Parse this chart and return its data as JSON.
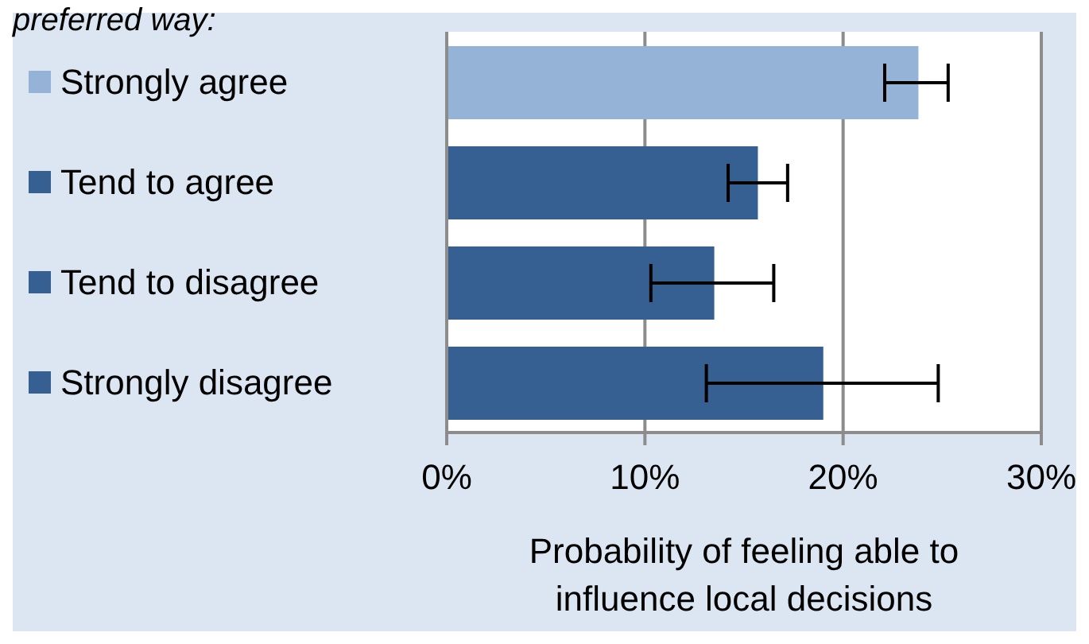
{
  "chart_data": {
    "type": "bar",
    "orientation": "horizontal",
    "title": "preferred way:",
    "xlabel": "Probability of feeling able to influence local decisions",
    "categories": [
      "Strongly agree",
      "Tend to agree",
      "Tend to disagree",
      "Strongly disagree"
    ],
    "values": [
      23.8,
      15.7,
      13.5,
      19.0
    ],
    "colors": [
      "#95b3d7",
      "#366092",
      "#366092",
      "#366092"
    ],
    "errors": [
      [
        22.1,
        25.3
      ],
      [
        14.2,
        17.2
      ],
      [
        10.3,
        16.5
      ],
      [
        13.1,
        24.8
      ]
    ],
    "xlim": [
      0,
      30
    ],
    "xticks": [
      {
        "value": 0,
        "label": "0%"
      },
      {
        "value": 10,
        "label": "10%"
      },
      {
        "value": 20,
        "label": "20%"
      },
      {
        "value": 30,
        "label": "30%"
      }
    ],
    "grid": "x"
  }
}
